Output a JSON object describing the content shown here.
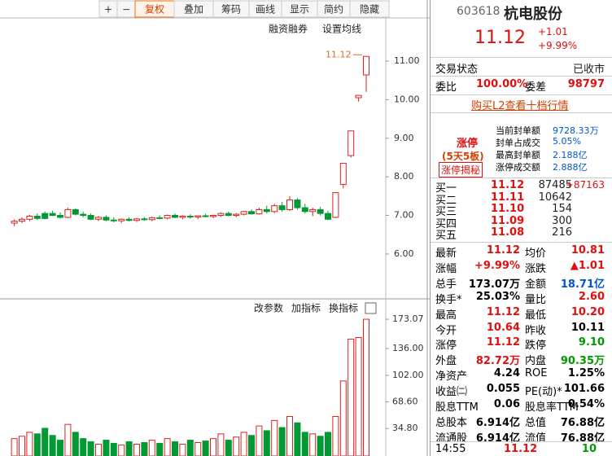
{
  "toolbar": [
    "+",
    "−",
    "复权",
    "叠加",
    "筹码",
    "画线",
    "显示",
    "简约",
    "隐藏"
  ],
  "chart": {
    "type": "candlestick",
    "annotations": [
      "融资融券",
      "设置均线"
    ],
    "last_price_label": "11.12",
    "ylim": [
      4.88,
      12.16
    ],
    "yticks": [
      {
        "value": 11,
        "label": "11.00"
      },
      {
        "value": 10,
        "label": "10.00"
      },
      {
        "value": 9,
        "label": "9.00"
      },
      {
        "value": 8,
        "label": "8.00"
      },
      {
        "value": 7,
        "label": "7.00"
      },
      {
        "value": 6,
        "label": "6.00"
      }
    ],
    "up_color": "#e02020",
    "down_color": "#009933",
    "candles": [
      [
        6.8,
        6.9,
        6.72,
        6.85
      ],
      [
        6.85,
        6.95,
        6.8,
        6.9
      ],
      [
        6.9,
        7.02,
        6.85,
        6.98
      ],
      [
        6.98,
        7.05,
        6.88,
        6.92
      ],
      [
        7.05,
        7.1,
        6.9,
        6.92
      ],
      [
        7.05,
        7.12,
        6.98,
        7.0
      ],
      [
        7.0,
        7.08,
        6.92,
        6.95
      ],
      [
        6.95,
        7.2,
        6.93,
        7.15
      ],
      [
        7.15,
        7.18,
        7.0,
        7.03
      ],
      [
        7.03,
        7.1,
        6.95,
        7.0
      ],
      [
        7.0,
        7.05,
        6.88,
        6.9
      ],
      [
        6.9,
        6.98,
        6.85,
        6.95
      ],
      [
        6.95,
        7.0,
        6.85,
        6.88
      ],
      [
        6.88,
        6.95,
        6.82,
        6.86
      ],
      [
        6.86,
        6.92,
        6.8,
        6.9
      ],
      [
        6.9,
        6.95,
        6.84,
        6.87
      ],
      [
        6.87,
        6.93,
        6.83,
        6.91
      ],
      [
        6.91,
        6.96,
        6.86,
        6.89
      ],
      [
        6.89,
        6.97,
        6.85,
        6.94
      ],
      [
        6.94,
        7.0,
        6.9,
        6.93
      ],
      [
        6.93,
        7.02,
        6.9,
        7.0
      ],
      [
        7.0,
        7.05,
        6.93,
        6.95
      ],
      [
        6.95,
        7.0,
        6.9,
        6.98
      ],
      [
        6.98,
        7.03,
        6.92,
        6.96
      ],
      [
        6.96,
        7.0,
        6.9,
        6.99
      ],
      [
        6.99,
        7.04,
        6.95,
        6.97
      ],
      [
        6.97,
        7.02,
        6.93,
        7.0
      ],
      [
        7.0,
        7.08,
        6.96,
        7.05
      ],
      [
        7.05,
        7.1,
        6.98,
        7.0
      ],
      [
        7.0,
        7.06,
        6.95,
        7.03
      ],
      [
        7.03,
        7.12,
        7.0,
        7.1
      ],
      [
        7.1,
        7.15,
        7.02,
        7.04
      ],
      [
        7.04,
        7.2,
        7.02,
        7.15
      ],
      [
        7.15,
        7.25,
        7.05,
        7.1
      ],
      [
        7.1,
        7.3,
        7.06,
        7.25
      ],
      [
        7.25,
        7.35,
        7.1,
        7.15
      ],
      [
        7.15,
        7.5,
        7.12,
        7.4
      ],
      [
        7.4,
        7.45,
        7.15,
        7.2
      ],
      [
        7.2,
        7.3,
        7.05,
        7.1
      ],
      [
        7.1,
        7.2,
        6.98,
        7.15
      ],
      [
        7.15,
        7.22,
        7.0,
        7.05
      ],
      [
        7.05,
        7.12,
        6.88,
        6.9
      ],
      [
        6.95,
        7.59,
        6.93,
        7.59
      ],
      [
        7.8,
        8.35,
        7.7,
        8.35
      ],
      [
        8.55,
        9.19,
        8.5,
        9.19
      ],
      [
        10.05,
        10.11,
        9.95,
        10.11
      ],
      [
        10.64,
        11.12,
        10.2,
        11.12
      ]
    ],
    "volume": {
      "ylim": [
        0,
        185.5
      ],
      "yticks": [
        173.07,
        {
          "value": 136,
          "label": "136.00"
        },
        {
          "value": 102,
          "label": "102.00"
        },
        {
          "value": 68.6,
          "label": "68.60"
        },
        {
          "value": 34.8,
          "label": "34.80"
        }
      ],
      "values": [
        22,
        25,
        30,
        28,
        35,
        26,
        20,
        40,
        30,
        22,
        18,
        15,
        20,
        16,
        14,
        18,
        15,
        17,
        20,
        16,
        22,
        18,
        15,
        20,
        17,
        19,
        22,
        28,
        20,
        24,
        30,
        26,
        38,
        32,
        45,
        36,
        50,
        42,
        30,
        28,
        25,
        30,
        50,
        95,
        148,
        150,
        173.07
      ]
    },
    "indicator_buttons": [
      "改参数",
      "加指标",
      "换指标"
    ]
  },
  "quote": {
    "code": "603618",
    "name": "杭电股份",
    "price": "11.12",
    "change": "+1.01",
    "pct": "+9.99%",
    "status_label": "交易状态",
    "status": "已收市",
    "wb_label": "委比",
    "wb": "100.00%",
    "wc_label": "委差",
    "wc": "98797",
    "l2_link": "购买L2查看十档行情",
    "limit": {
      "title": "涨停",
      "streak": "(5天5板)",
      "button": "涨停揭秘",
      "rows": [
        [
          "当前封单额",
          "9728.33万"
        ],
        [
          "封单占成交",
          "5.05%"
        ],
        [
          "最高封单额",
          "2.188亿"
        ],
        [
          "涨停成交额",
          "2.888亿"
        ]
      ]
    },
    "book": [
      [
        "买一",
        "11.12",
        "87485",
        "+87163"
      ],
      [
        "买二",
        "11.11",
        "10642"
      ],
      [
        "买三",
        "11.10",
        "154"
      ],
      [
        "买四",
        "11.09",
        "300"
      ],
      [
        "买五",
        "11.08",
        "216"
      ]
    ],
    "stats": [
      {
        "cells": [
          "最新",
          "11.12",
          "均价",
          "10.81"
        ],
        "colors": [
          "#e01010",
          "#e01010"
        ]
      },
      {
        "cells": [
          "涨幅",
          "+9.99%",
          "涨跌",
          "▲1.01"
        ],
        "colors": [
          "#e01010",
          "#e01010"
        ]
      },
      {
        "cells": [
          "总手",
          "173.07万",
          "金额",
          "18.71亿"
        ],
        "colors": [
          "#000",
          "#0055cc"
        ]
      },
      {
        "cells": [
          "换手*",
          "25.03%",
          "量比",
          "2.60"
        ],
        "colors": [
          "#000",
          "#e01010"
        ]
      },
      {
        "cells": [
          "最高",
          "11.12",
          "最低",
          "10.20"
        ],
        "colors": [
          "#e01010",
          "#e01010"
        ]
      },
      {
        "cells": [
          "今开",
          "10.64",
          "昨收",
          "10.11"
        ],
        "colors": [
          "#e01010",
          "#000"
        ]
      },
      {
        "cells": [
          "涨停",
          "11.12",
          "跌停",
          "9.10"
        ],
        "colors": [
          "#e01010",
          "#009900"
        ]
      },
      {
        "cells": [
          "外盘",
          "82.72万",
          "内盘",
          "90.35万"
        ],
        "colors": [
          "#e01010",
          "#009900"
        ]
      },
      {
        "cells": [
          "净资产",
          "4.24",
          "ROE",
          "1.25%"
        ],
        "colors": [
          "#000",
          "#000"
        ]
      },
      {
        "cells": [
          "收益㈡",
          "0.055",
          "PE(动)*",
          "101.66"
        ],
        "colors": [
          "#000",
          "#000"
        ]
      },
      {
        "cells": [
          "股息TTM",
          "0.06",
          "股息率TTM",
          "0.54%"
        ],
        "colors": [
          "#000",
          "#000"
        ]
      },
      {
        "cells": [
          "总股本",
          "6.914亿",
          "总值",
          "76.88亿"
        ],
        "colors": [
          "#000",
          "#000"
        ]
      },
      {
        "cells": [
          "流通股",
          "6.914亿",
          "流值",
          "76.88亿"
        ],
        "colors": [
          "#000",
          "#000"
        ]
      }
    ],
    "last_trade": [
      "14:55",
      "11.12",
      "10"
    ]
  }
}
